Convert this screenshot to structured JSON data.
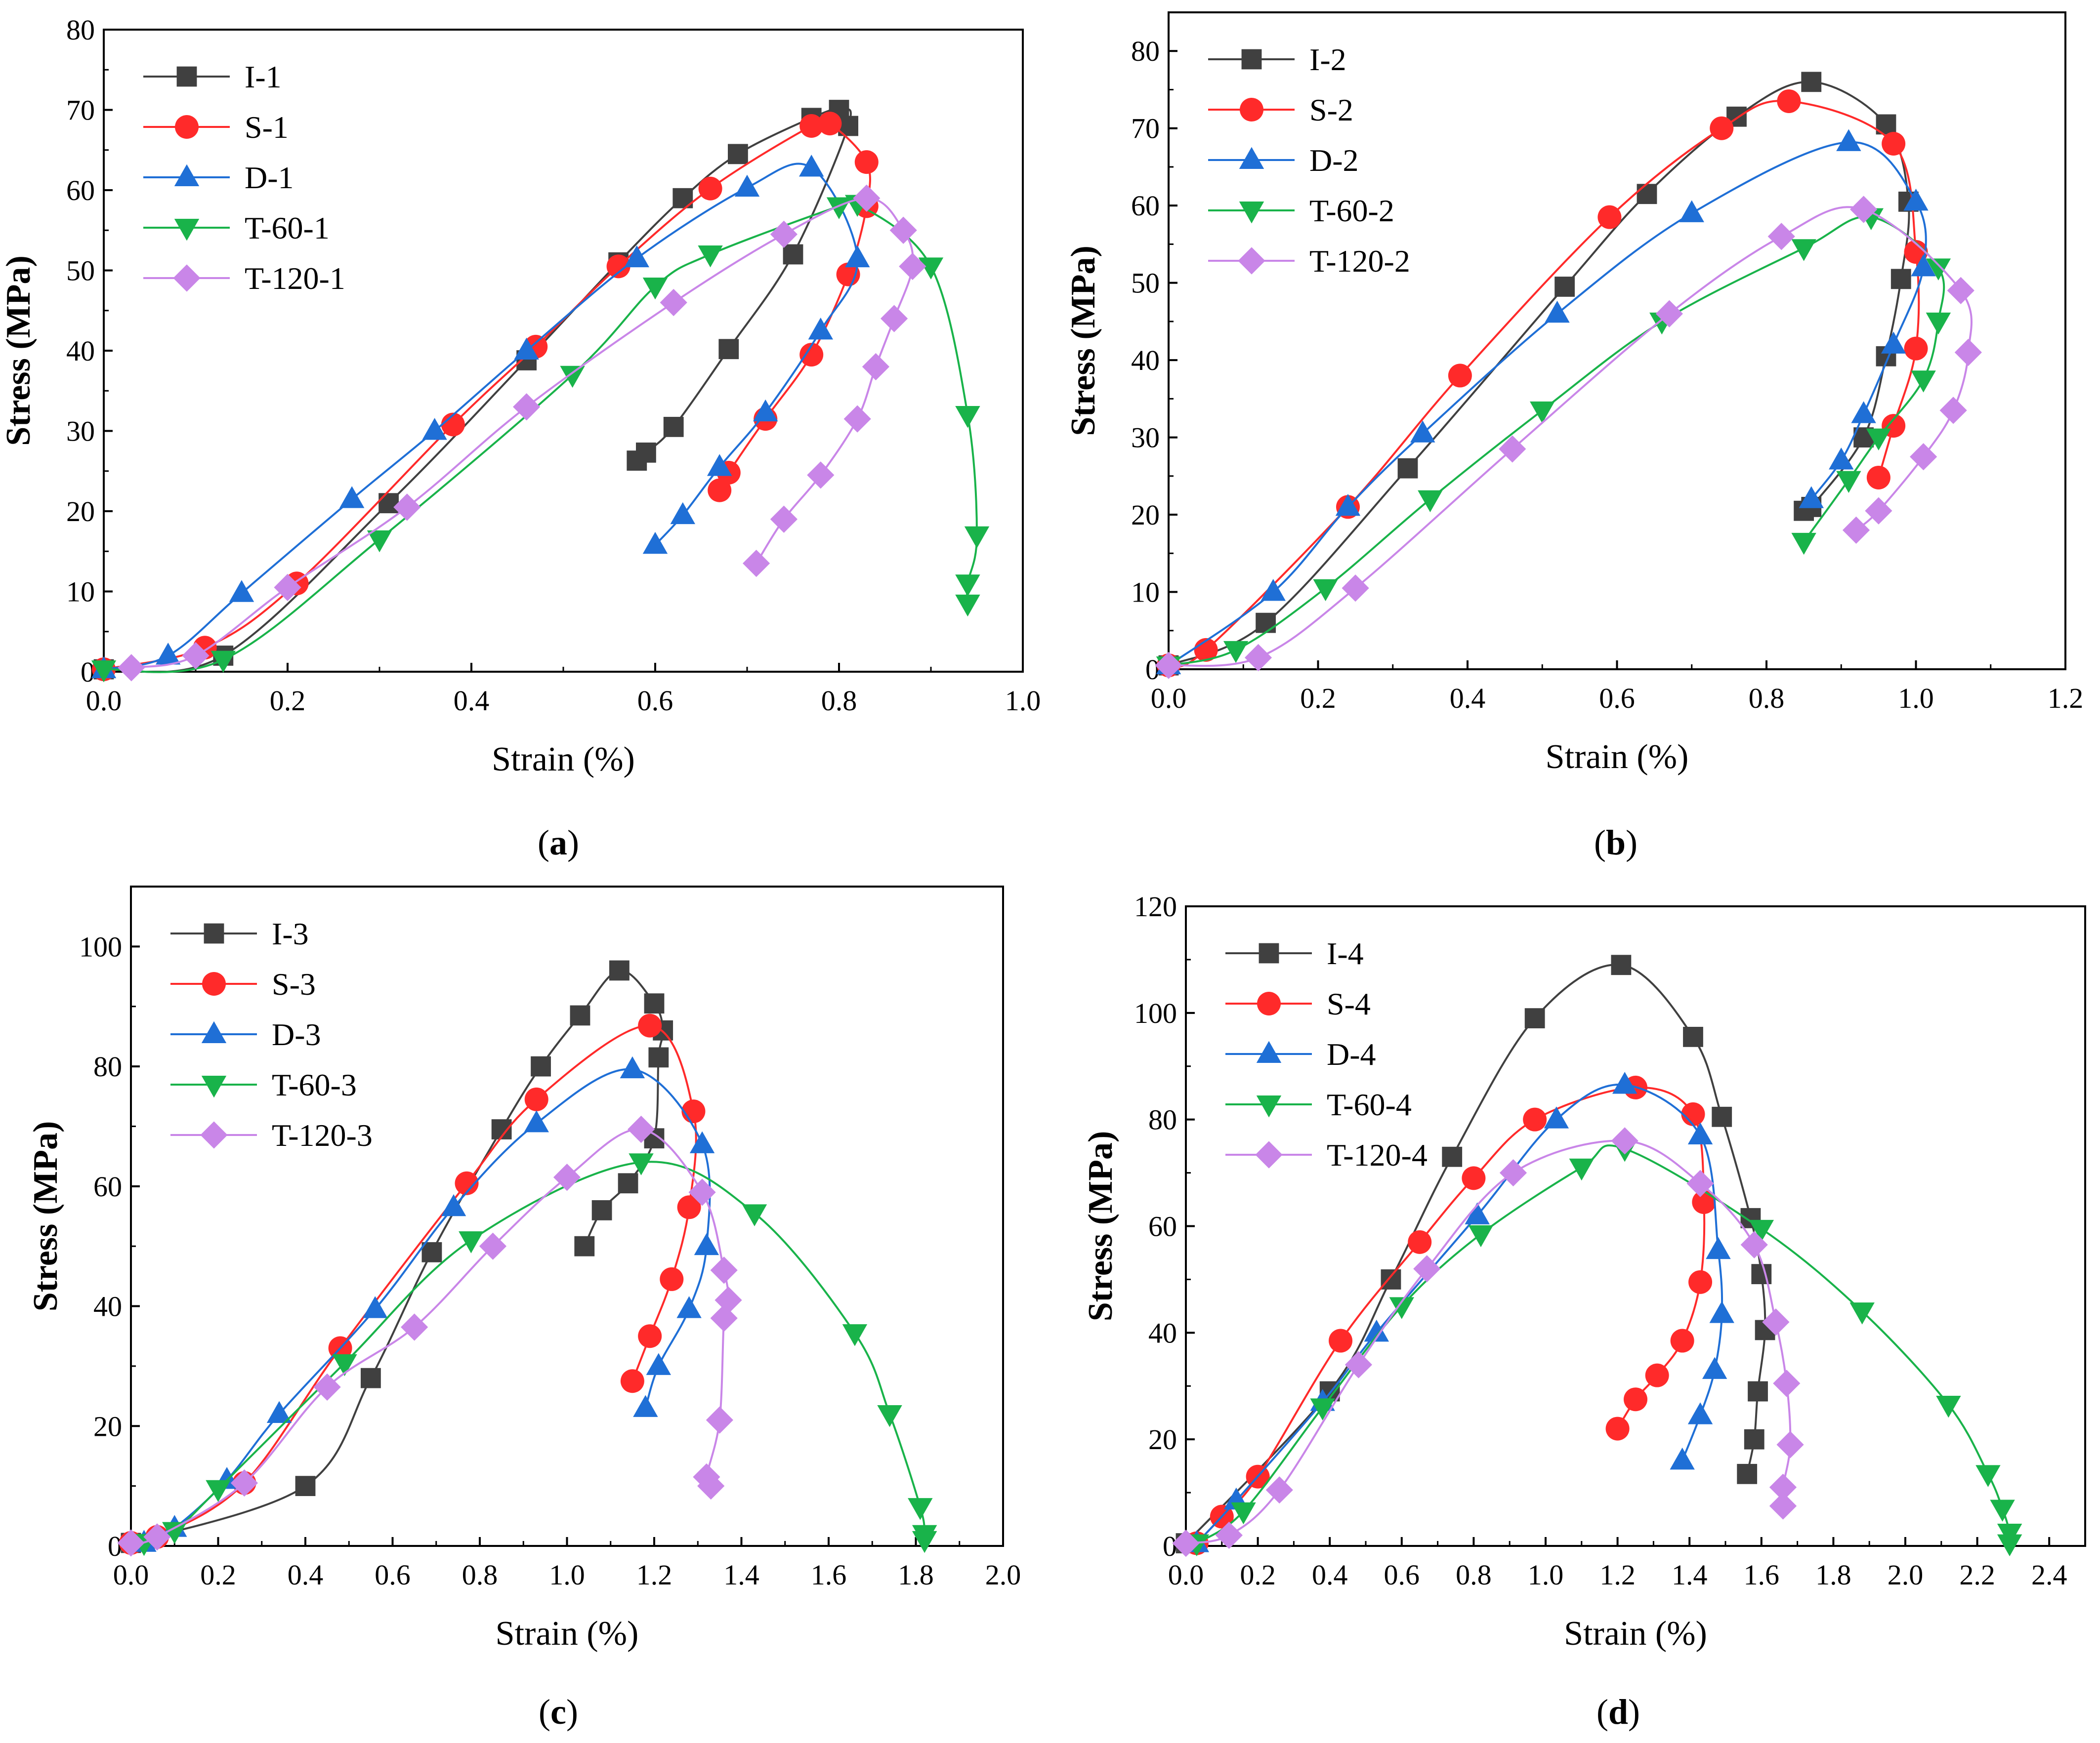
{
  "colors": {
    "I": "#404040",
    "S": "#ff2a2a",
    "D": "#1f6fd6",
    "T60": "#19b34a",
    "T120": "#c986e8",
    "axis": "#000000"
  },
  "chart_data": [
    {
      "panel": "(a)",
      "type": "line",
      "xlabel": "Strain (%)",
      "ylabel": "Stress (MPa)",
      "xlim": [
        0,
        1.0
      ],
      "ylim": [
        0,
        80
      ],
      "xticks": [
        "0.0",
        "0.2",
        "0.4",
        "0.6",
        "0.8",
        "1.0"
      ],
      "yticks": [
        "0",
        "10",
        "20",
        "30",
        "40",
        "50",
        "60",
        "70",
        "80"
      ],
      "legend": "top-left",
      "series": [
        {
          "name": "I-1",
          "marker": "square",
          "color": "#404040",
          "x": [
            0.0,
            0.13,
            0.31,
            0.46,
            0.56,
            0.63,
            0.69,
            0.77,
            0.8,
            0.81,
            0.75,
            0.68,
            0.62,
            0.59,
            0.58
          ],
          "y": [
            0.3,
            2.0,
            21.0,
            38.8,
            51.0,
            59.0,
            64.5,
            69.0,
            70.0,
            68.0,
            52.0,
            40.2,
            30.5,
            27.3,
            26.3
          ]
        },
        {
          "name": "S-1",
          "marker": "circle",
          "color": "#ff2a2a",
          "x": [
            0.0,
            0.11,
            0.21,
            0.38,
            0.47,
            0.56,
            0.66,
            0.77,
            0.79,
            0.83,
            0.83,
            0.81,
            0.77,
            0.72,
            0.68,
            0.67
          ],
          "y": [
            0.3,
            3.0,
            11.0,
            30.8,
            40.5,
            50.5,
            60.2,
            68.0,
            68.3,
            63.5,
            58.0,
            49.5,
            39.5,
            31.5,
            24.8,
            22.6
          ]
        },
        {
          "name": "D-1",
          "marker": "triangle",
          "color": "#1f6fd6",
          "x": [
            0.0,
            0.07,
            0.15,
            0.27,
            0.36,
            0.46,
            0.58,
            0.7,
            0.77,
            0.82,
            0.78,
            0.72,
            0.67,
            0.63,
            0.6
          ],
          "y": [
            0.3,
            2.0,
            9.8,
            21.5,
            30.0,
            40.0,
            51.5,
            60.3,
            62.8,
            51.5,
            42.5,
            32.3,
            25.5,
            19.5,
            15.8
          ]
        },
        {
          "name": "T-60-1",
          "marker": "triangle-down",
          "color": "#19b34a",
          "x": [
            0.0,
            0.13,
            0.3,
            0.51,
            0.6,
            0.66,
            0.8,
            0.82,
            0.9,
            0.94,
            0.95,
            0.94,
            0.94
          ],
          "y": [
            0.3,
            1.5,
            16.5,
            37.0,
            48.0,
            52.0,
            58.0,
            58.3,
            50.5,
            32.0,
            17.0,
            11.0,
            8.5
          ]
        },
        {
          "name": "T-120-1",
          "marker": "diamond",
          "color": "#c986e8",
          "x": [
            0.03,
            0.1,
            0.2,
            0.33,
            0.46,
            0.62,
            0.74,
            0.83,
            0.87,
            0.88,
            0.86,
            0.84,
            0.82,
            0.78,
            0.74,
            0.71
          ],
          "y": [
            0.5,
            2.0,
            10.5,
            20.5,
            33.0,
            46.0,
            54.5,
            59.0,
            55.0,
            50.5,
            44.0,
            38.0,
            31.5,
            24.5,
            19.0,
            13.5
          ]
        }
      ]
    },
    {
      "panel": "(b)",
      "type": "line",
      "xlabel": "Strain (%)",
      "ylabel": "Stress (MPa)",
      "xlim": [
        0,
        1.2
      ],
      "ylim": [
        0,
        85
      ],
      "xticks": [
        "0.0",
        "0.2",
        "0.4",
        "0.6",
        "0.8",
        "1.0",
        "1.2"
      ],
      "yticks": [
        "0",
        "10",
        "20",
        "30",
        "40",
        "50",
        "60",
        "70",
        "80"
      ],
      "legend": "top-left",
      "series": [
        {
          "name": "I-2",
          "marker": "square",
          "color": "#404040",
          "x": [
            0.0,
            0.13,
            0.32,
            0.53,
            0.64,
            0.76,
            0.86,
            0.96,
            0.99,
            0.98,
            0.96,
            0.93,
            0.86,
            0.85
          ],
          "y": [
            0.5,
            6.0,
            26.0,
            49.5,
            61.5,
            71.5,
            76.0,
            70.5,
            60.5,
            50.5,
            40.5,
            30.0,
            21.0,
            20.5
          ]
        },
        {
          "name": "S-2",
          "marker": "circle",
          "color": "#ff2a2a",
          "x": [
            0.0,
            0.05,
            0.24,
            0.39,
            0.59,
            0.74,
            0.83,
            0.97,
            1.0,
            1.0,
            0.97,
            0.95
          ],
          "y": [
            0.5,
            2.5,
            21.0,
            38.0,
            58.5,
            70.0,
            73.5,
            68.0,
            54.0,
            41.5,
            31.5,
            24.8
          ]
        },
        {
          "name": "D-2",
          "marker": "triangle",
          "color": "#1f6fd6",
          "x": [
            0.0,
            0.14,
            0.24,
            0.34,
            0.52,
            0.7,
            0.91,
            1.0,
            1.01,
            0.97,
            0.93,
            0.9,
            0.86
          ],
          "y": [
            0.5,
            10.0,
            21.0,
            30.5,
            46.0,
            59.0,
            68.2,
            60.5,
            52.0,
            42.0,
            33.0,
            27.0,
            22.0
          ]
        },
        {
          "name": "T-60-2",
          "marker": "triangle-down",
          "color": "#19b34a",
          "x": [
            0.0,
            0.09,
            0.21,
            0.35,
            0.5,
            0.66,
            0.85,
            0.94,
            1.03,
            1.03,
            1.01,
            0.95,
            0.91,
            0.85
          ],
          "y": [
            0.5,
            2.5,
            10.5,
            22.0,
            33.5,
            45.0,
            54.5,
            58.5,
            52.0,
            45.0,
            37.5,
            30.0,
            24.5,
            16.5
          ]
        },
        {
          "name": "T-120-2",
          "marker": "diamond",
          "color": "#c986e8",
          "x": [
            0.0,
            0.12,
            0.25,
            0.46,
            0.67,
            0.82,
            0.93,
            1.06,
            1.07,
            1.05,
            1.01,
            0.95,
            0.92
          ],
          "y": [
            0.5,
            1.5,
            10.5,
            28.5,
            46.0,
            56.0,
            59.5,
            49.0,
            41.0,
            33.5,
            27.5,
            20.5,
            18.0
          ]
        }
      ]
    },
    {
      "panel": "(c)",
      "type": "line",
      "xlabel": "Strain (%)",
      "ylabel": "Stress (MPa)",
      "xlim": [
        0,
        2.0
      ],
      "ylim": [
        0,
        110
      ],
      "xticks": [
        "0.0",
        "0.2",
        "0.4",
        "0.6",
        "0.8",
        "1.0",
        "1.2",
        "1.4",
        "1.6",
        "1.8",
        "2.0"
      ],
      "yticks": [
        "0",
        "20",
        "40",
        "60",
        "80",
        "100"
      ],
      "legend": "top-left",
      "series": [
        {
          "name": "I-3",
          "marker": "square",
          "color": "#404040",
          "x": [
            0.0,
            0.4,
            0.55,
            0.69,
            0.85,
            0.94,
            1.03,
            1.12,
            1.2,
            1.22,
            1.21,
            1.2,
            1.14,
            1.08,
            1.04
          ],
          "y": [
            0.5,
            10.0,
            28.0,
            49.0,
            69.5,
            80.0,
            88.5,
            96.0,
            90.5,
            86.0,
            81.5,
            68.0,
            60.5,
            56.0,
            50.0
          ]
        },
        {
          "name": "S-3",
          "marker": "circle",
          "color": "#ff2a2a",
          "x": [
            0.0,
            0.06,
            0.26,
            0.48,
            0.77,
            0.93,
            1.19,
            1.29,
            1.28,
            1.24,
            1.19,
            1.15
          ],
          "y": [
            0.5,
            1.5,
            10.5,
            33.0,
            60.5,
            74.5,
            86.8,
            72.5,
            56.5,
            44.5,
            35.0,
            27.5
          ]
        },
        {
          "name": "D-3",
          "marker": "triangle",
          "color": "#1f6fd6",
          "x": [
            0.03,
            0.1,
            0.22,
            0.34,
            0.56,
            0.74,
            0.93,
            1.15,
            1.31,
            1.32,
            1.28,
            1.21,
            1.18
          ],
          "y": [
            0.5,
            3.0,
            11.0,
            22.0,
            39.5,
            56.5,
            70.5,
            79.5,
            67.0,
            50.0,
            39.5,
            30.0,
            23.0
          ]
        },
        {
          "name": "T-60-3",
          "marker": "triangle-down",
          "color": "#19b34a",
          "x": [
            0.03,
            0.1,
            0.2,
            0.49,
            0.78,
            1.17,
            1.43,
            1.66,
            1.74,
            1.81,
            1.82,
            1.82
          ],
          "y": [
            0.5,
            2.5,
            9.5,
            30.5,
            51.0,
            64.0,
            55.5,
            35.5,
            22.0,
            6.5,
            2.0,
            1.0
          ]
        },
        {
          "name": "T-120-3",
          "marker": "diamond",
          "color": "#c986e8",
          "x": [
            0.0,
            0.06,
            0.26,
            0.45,
            0.65,
            0.83,
            1.0,
            1.17,
            1.31,
            1.36,
            1.37,
            1.36,
            1.35,
            1.32,
            1.33
          ],
          "y": [
            0.5,
            1.5,
            10.5,
            26.5,
            36.5,
            50.0,
            61.5,
            69.5,
            59.0,
            46.0,
            41.0,
            38.0,
            21.0,
            11.5,
            10.0
          ]
        }
      ]
    },
    {
      "panel": "(d)",
      "type": "line",
      "xlabel": "Strain (%)",
      "ylabel": "Stress (MPa)",
      "xlim": [
        0,
        2.5
      ],
      "ylim": [
        0,
        120
      ],
      "xticks": [
        "0.0",
        "0.2",
        "0.4",
        "0.6",
        "0.8",
        "1.0",
        "1.2",
        "1.4",
        "1.6",
        "1.8",
        "2.0",
        "2.2",
        "2.4"
      ],
      "yticks": [
        "0",
        "20",
        "40",
        "60",
        "80",
        "100",
        "120"
      ],
      "legend": "top-left",
      "series": [
        {
          "name": "I-4",
          "marker": "square",
          "color": "#404040",
          "x": [
            0.0,
            0.4,
            0.57,
            0.74,
            0.97,
            1.21,
            1.41,
            1.49,
            1.57,
            1.6,
            1.61,
            1.59,
            1.58,
            1.56
          ],
          "y": [
            0.5,
            29.0,
            50.0,
            73.0,
            99.0,
            109.0,
            95.5,
            80.5,
            61.5,
            51.0,
            40.5,
            29.0,
            20.0,
            13.5
          ]
        },
        {
          "name": "S-4",
          "marker": "circle",
          "color": "#ff2a2a",
          "x": [
            0.03,
            0.1,
            0.2,
            0.43,
            0.65,
            0.8,
            0.97,
            1.25,
            1.41,
            1.44,
            1.43,
            1.38,
            1.31,
            1.25,
            1.2
          ],
          "y": [
            0.5,
            5.5,
            13.0,
            38.5,
            57.0,
            69.0,
            80.0,
            86.0,
            81.0,
            64.5,
            49.5,
            38.5,
            32.0,
            27.5,
            22.0
          ]
        },
        {
          "name": "D-4",
          "marker": "triangle",
          "color": "#1f6fd6",
          "x": [
            0.03,
            0.14,
            0.38,
            0.53,
            0.81,
            1.03,
            1.22,
            1.43,
            1.48,
            1.49,
            1.47,
            1.43,
            1.38
          ],
          "y": [
            0.5,
            8.5,
            27.0,
            40.0,
            62.0,
            80.0,
            86.5,
            77.0,
            55.5,
            43.5,
            33.0,
            24.5,
            16.0
          ]
        },
        {
          "name": "T-60-4",
          "marker": "triangle-down",
          "color": "#19b34a",
          "x": [
            0.03,
            0.16,
            0.38,
            0.6,
            0.82,
            1.1,
            1.22,
            1.6,
            1.88,
            2.12,
            2.23,
            2.27,
            2.29,
            2.29
          ],
          "y": [
            0.5,
            6.5,
            26.0,
            45.0,
            58.5,
            71.0,
            74.5,
            59.5,
            44.0,
            26.5,
            13.5,
            7.0,
            2.5,
            0.5
          ]
        },
        {
          "name": "T-120-4",
          "marker": "diamond",
          "color": "#c986e8",
          "x": [
            0.0,
            0.12,
            0.26,
            0.48,
            0.67,
            0.91,
            1.22,
            1.43,
            1.58,
            1.64,
            1.67,
            1.68,
            1.66,
            1.66
          ],
          "y": [
            0.5,
            2.0,
            10.5,
            34.0,
            52.0,
            70.0,
            76.0,
            68.0,
            56.5,
            42.0,
            30.5,
            19.0,
            11.0,
            7.5
          ]
        }
      ]
    }
  ]
}
